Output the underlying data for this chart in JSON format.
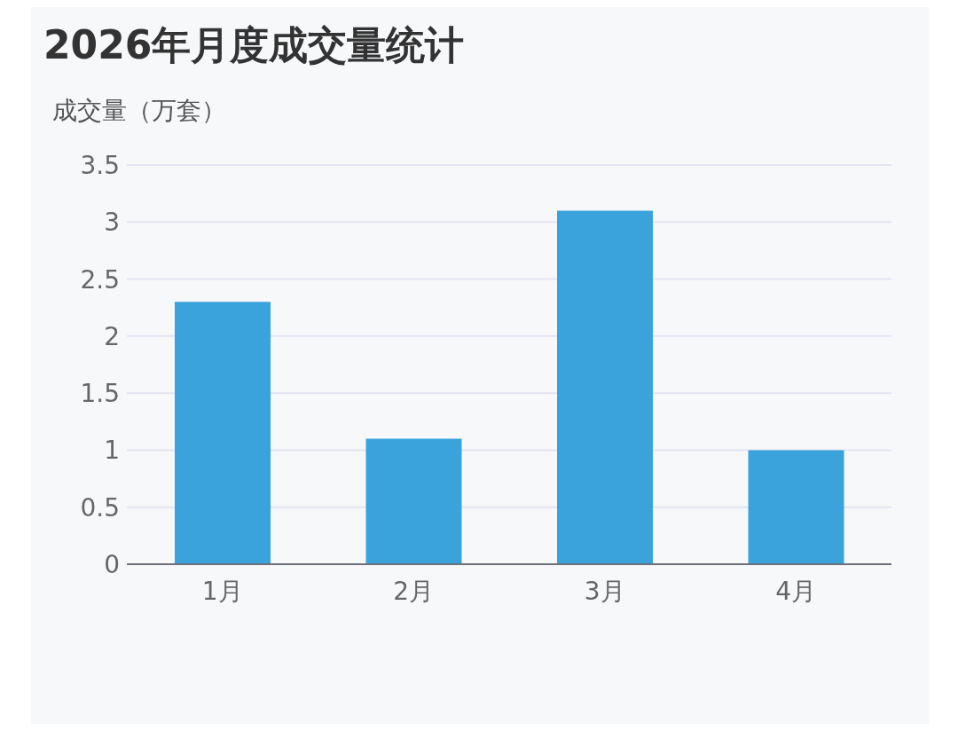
{
  "chart_data": {
    "type": "bar",
    "title": "2026年月度成交量统计",
    "ylabel": "成交量（万套）",
    "categories": [
      "1月",
      "2月",
      "3月",
      "4月"
    ],
    "values": [
      2.3,
      1.1,
      3.1,
      1.0
    ],
    "color": "#3aa3dc",
    "ylim": [
      0,
      3.5
    ],
    "yticks": [
      0,
      0.5,
      1,
      1.5,
      2,
      2.5,
      3,
      3.5
    ],
    "grid": "y"
  }
}
